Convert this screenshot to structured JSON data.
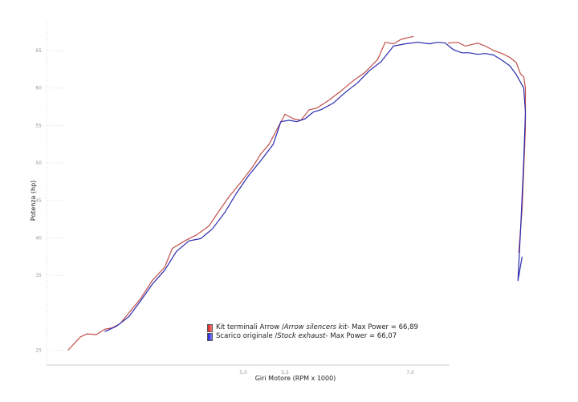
{
  "chart_data": {
    "type": "line",
    "xlabel": "Giri Motore (RPM x 1000)",
    "ylabel": "Potenza (hp)",
    "xlim": [
      2.6,
      8.6
    ],
    "ylim": [
      23.5,
      68.5
    ],
    "x_ticks": [
      {
        "v": 5.0,
        "label": "5,0"
      },
      {
        "v": 5.5,
        "label": "5,5"
      },
      {
        "v": 7.0,
        "label": "7,0"
      }
    ],
    "y_ticks": [
      25,
      35,
      40,
      45,
      50,
      55,
      60,
      65
    ],
    "grid": false,
    "legend_position": "bottom-center",
    "series": [
      {
        "name": "Kit terminali Arrow / Arrow silencers kit",
        "name_plain": "Kit terminali Arrow / ",
        "name_italic": "Arrow silencers kit",
        "max_label": " - Max Power = 66,89",
        "color": "#c0504d",
        "segments": [
          [
            [
              2.9,
              25.0
            ],
            [
              3.05,
              26.8
            ],
            [
              3.13,
              27.2
            ],
            [
              3.24,
              27.1
            ],
            [
              3.34,
              27.8
            ],
            [
              3.43,
              28.0
            ],
            [
              3.53,
              28.6
            ],
            [
              3.63,
              30.0
            ],
            [
              3.77,
              31.9
            ],
            [
              3.91,
              34.3
            ],
            [
              4.06,
              36.1
            ],
            [
              4.15,
              38.6
            ],
            [
              4.3,
              39.6
            ],
            [
              4.44,
              40.4
            ],
            [
              4.59,
              41.6
            ],
            [
              4.68,
              43.1
            ],
            [
              4.83,
              45.5
            ],
            [
              4.97,
              47.4
            ],
            [
              5.12,
              49.6
            ],
            [
              5.21,
              51.2
            ],
            [
              5.31,
              52.5
            ],
            [
              5.4,
              54.4
            ],
            [
              5.5,
              56.5
            ],
            [
              5.6,
              55.9
            ],
            [
              5.69,
              55.7
            ],
            [
              5.79,
              57.1
            ],
            [
              5.88,
              57.3
            ],
            [
              6.03,
              58.4
            ],
            [
              6.17,
              59.6
            ],
            [
              6.32,
              61.0
            ],
            [
              6.46,
              62.1
            ],
            [
              6.61,
              63.8
            ],
            [
              6.7,
              66.1
            ],
            [
              6.8,
              65.9
            ],
            [
              6.89,
              66.5
            ],
            [
              7.04,
              66.9
            ]
          ],
          [
            [
              7.45,
              66.0
            ],
            [
              7.57,
              66.1
            ],
            [
              7.66,
              65.6
            ],
            [
              7.81,
              66.0
            ],
            [
              7.9,
              65.6
            ],
            [
              8.0,
              65.0
            ],
            [
              8.1,
              64.6
            ],
            [
              8.19,
              64.1
            ],
            [
              8.27,
              63.4
            ],
            [
              8.32,
              61.9
            ],
            [
              8.36,
              61.5
            ],
            [
              8.38,
              60.0
            ],
            [
              8.38,
              54.6
            ],
            [
              8.34,
              43.9
            ],
            [
              8.3,
              38.0
            ]
          ]
        ]
      },
      {
        "name": "Scarico originale / Stock exhaust",
        "name_plain": "Scarico originale / ",
        "name_italic": "Stock exhaust",
        "max_label": " - Max Power = 66,07",
        "color": "#2a2ab0",
        "segments": [
          [
            [
              3.34,
              27.5
            ],
            [
              3.48,
              28.2
            ],
            [
              3.63,
              29.5
            ],
            [
              3.77,
              31.6
            ],
            [
              3.91,
              33.8
            ],
            [
              4.06,
              35.7
            ],
            [
              4.2,
              38.2
            ],
            [
              4.35,
              39.6
            ],
            [
              4.49,
              39.9
            ],
            [
              4.63,
              41.2
            ],
            [
              4.78,
              43.4
            ],
            [
              4.92,
              46.0
            ],
            [
              5.07,
              48.4
            ],
            [
              5.21,
              50.3
            ],
            [
              5.36,
              52.5
            ],
            [
              5.45,
              55.5
            ],
            [
              5.55,
              55.7
            ],
            [
              5.64,
              55.5
            ],
            [
              5.74,
              55.9
            ],
            [
              5.84,
              56.8
            ],
            [
              5.93,
              57.1
            ],
            [
              6.08,
              58.0
            ],
            [
              6.22,
              59.4
            ],
            [
              6.37,
              60.7
            ],
            [
              6.51,
              62.3
            ],
            [
              6.65,
              63.5
            ],
            [
              6.8,
              65.6
            ],
            [
              6.94,
              65.9
            ],
            [
              7.09,
              66.1
            ],
            [
              7.23,
              65.9
            ],
            [
              7.33,
              66.1
            ],
            [
              7.42,
              66.0
            ],
            [
              7.52,
              65.1
            ],
            [
              7.62,
              64.7
            ],
            [
              7.71,
              64.7
            ],
            [
              7.81,
              64.5
            ],
            [
              7.9,
              64.6
            ],
            [
              8.0,
              64.4
            ],
            [
              8.1,
              63.7
            ],
            [
              8.19,
              63.0
            ],
            [
              8.27,
              61.8
            ],
            [
              8.36,
              60.0
            ],
            [
              8.38,
              56.8
            ],
            [
              8.36,
              50.3
            ],
            [
              8.32,
              40.7
            ],
            [
              8.29,
              34.3
            ],
            [
              8.34,
              37.5
            ]
          ]
        ]
      }
    ]
  }
}
